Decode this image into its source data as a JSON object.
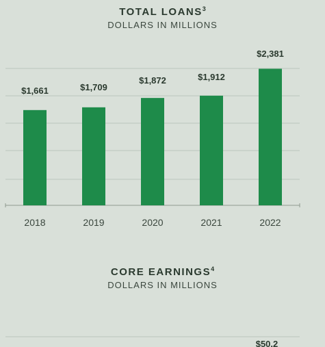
{
  "chart_data": [
    {
      "type": "bar",
      "title": "TOTAL LOANS",
      "title_superscript": "3",
      "subtitle": "DOLLARS IN MILLIONS",
      "categories": [
        "2018",
        "2019",
        "2020",
        "2021",
        "2022"
      ],
      "values": [
        1661,
        1709,
        1872,
        1912,
        2381
      ],
      "value_labels": [
        "$1,661",
        "$1,709",
        "$1,872",
        "$1,912",
        "$2,381"
      ],
      "ylim": [
        0,
        2900
      ],
      "grid": true,
      "bar_color": "#1e8b4a"
    },
    {
      "type": "bar",
      "title": "CORE EARNINGS",
      "title_superscript": "4",
      "subtitle": "DOLLARS IN MILLIONS",
      "categories": [],
      "visible_value_labels": [
        "$50.2"
      ],
      "grid": true,
      "bar_color": "#1e8b4a"
    }
  ]
}
